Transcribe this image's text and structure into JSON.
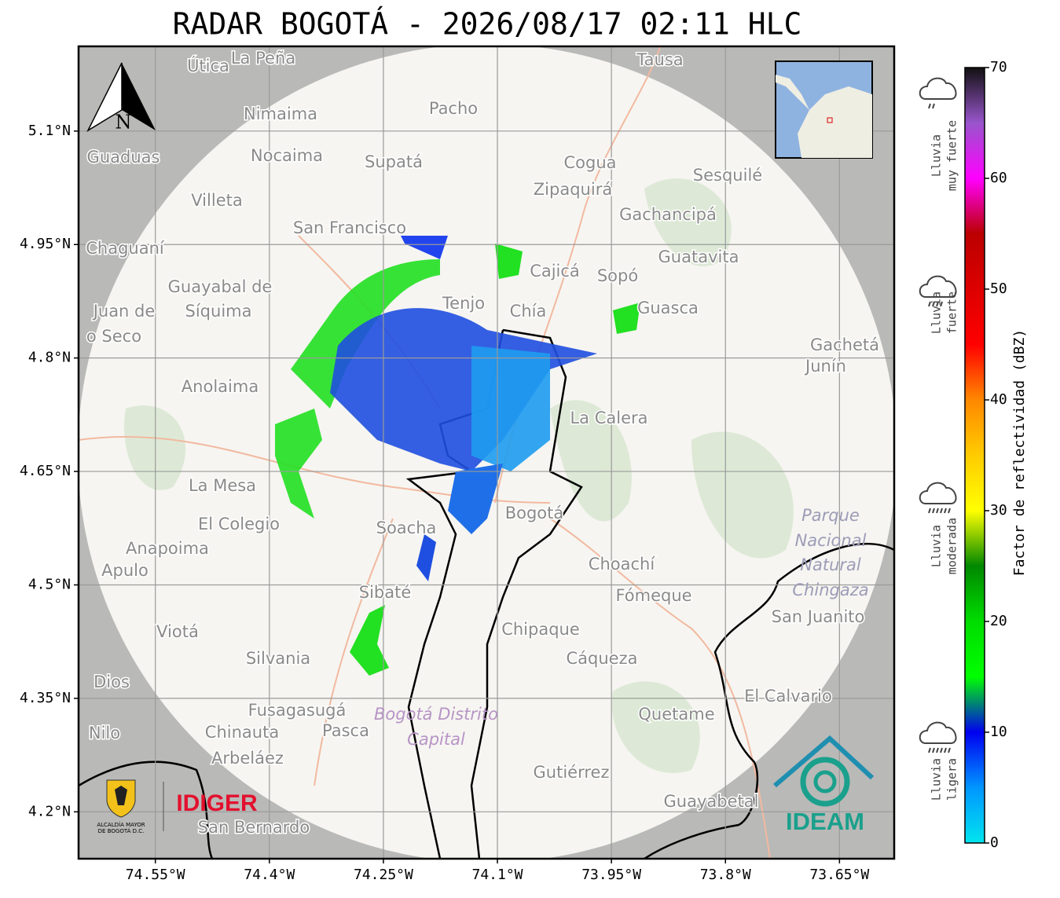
{
  "title": "RADAR BOGOTÁ - 2026/08/17 02:11 HLC",
  "map": {
    "xlim": [
      -74.651,
      -73.578
    ],
    "ylim": [
      4.138,
      5.212
    ],
    "xticks": [
      {
        "value": -74.55,
        "label": "74.55°W"
      },
      {
        "value": -74.4,
        "label": "74.4°W"
      },
      {
        "value": -74.25,
        "label": "74.25°W"
      },
      {
        "value": -74.1,
        "label": "74.1°W"
      },
      {
        "value": -73.95,
        "label": "73.95°W"
      },
      {
        "value": -73.8,
        "label": "73.8°W"
      },
      {
        "value": -73.65,
        "label": "73.65°W"
      }
    ],
    "yticks": [
      {
        "value": 5.1,
        "label": "5.1°N"
      },
      {
        "value": 4.95,
        "label": "4.95°N"
      },
      {
        "value": 4.8,
        "label": "4.8°N"
      },
      {
        "value": 4.65,
        "label": "4.65°N"
      },
      {
        "value": 4.5,
        "label": "4.5°N"
      },
      {
        "value": 4.35,
        "label": "4.35°N"
      },
      {
        "value": 4.2,
        "label": "4.2°N"
      }
    ],
    "grid": true,
    "north_label": "N",
    "places": [
      "Útica",
      "La Peña",
      "Tausa",
      "Pacho",
      "Nimaima",
      "Guaduas",
      "Nocaima",
      "Supatá",
      "Cogua",
      "Sesquilé",
      "Zipaquirá",
      "Villeta",
      "Gachancipá",
      "San Francisco",
      "Chaguaní",
      "Guatavita",
      "Guayabal de",
      "Síquima",
      "Juan de",
      "o Seco",
      "Cajicá",
      "Sopó",
      "Tenjo",
      "Chía",
      "Guasca",
      "Gachetá",
      "Junín",
      "Anolaima",
      "La Calera",
      "La Mesa",
      "El Colegio",
      "Soacha",
      "Bogotá",
      "Anapoima",
      "Apulo",
      "Choachí",
      "Fómeque",
      "San Juanito",
      "Sibaté",
      "Viotá",
      "Chipaque",
      "Silvania",
      "Cáqueza",
      "Dios",
      "El Calvario",
      "Fusagasugá",
      "Quetame",
      "Nilo",
      "Chinauta",
      "Pasca",
      "Arbeláez",
      "Gutiérrez",
      "Guayabetal",
      "San Bernardo"
    ],
    "park_label": [
      "Parque",
      "Nacional",
      "Natural",
      "Chingaza"
    ],
    "district_label": [
      "Bogotá Distrito",
      "Capital"
    ]
  },
  "colorbar": {
    "label": "Factor de reflectividad (dBZ)",
    "ylim": [
      0,
      70
    ],
    "yticks": [
      0,
      10,
      20,
      30,
      40,
      50,
      60,
      70
    ],
    "colors": [
      "#00e5ee",
      "#0096ff",
      "#0000f0",
      "#00ff00",
      "#00dd00",
      "#008800",
      "#ffff00",
      "#ffcc00",
      "#ff8800",
      "#ff0000",
      "#dd0000",
      "#bb0000",
      "#ff00ff",
      "#9955cc",
      "#111111"
    ]
  },
  "legend": [
    {
      "lines": [
        "Lluvia",
        "muy fuerte"
      ]
    },
    {
      "lines": [
        "Lluvia",
        "fuerte"
      ]
    },
    {
      "lines": [
        "Lluvia",
        "moderada"
      ]
    },
    {
      "lines": [
        "Lluvia",
        "ligera"
      ]
    }
  ],
  "logos": {
    "alcaldia": [
      "ALCALDÍA MAYOR",
      "DE BOGOTÁ D.C."
    ],
    "idiger": "IDIGER",
    "ideam": "IDEAM"
  }
}
